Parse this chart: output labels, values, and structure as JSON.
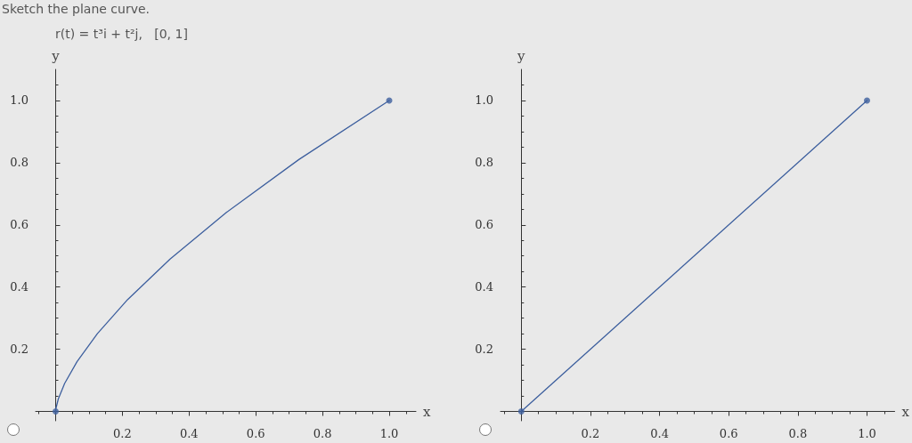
{
  "chart_data": [
    {
      "type": "line",
      "title": "Sketch the plane curve.",
      "subtitle": "r(t) = t³i + t²j,   [0, 1]",
      "xlabel": "x",
      "ylabel": "y",
      "series": [
        {
          "color": "#3d5f9e",
          "x": [
            0,
            0.001,
            0.008,
            0.027,
            0.064,
            0.125,
            0.216,
            0.343,
            0.512,
            0.729,
            1
          ],
          "values": [
            0,
            0.01,
            0.04,
            0.09,
            0.16,
            0.25,
            0.36,
            0.49,
            0.64,
            0.81,
            1
          ]
        },
        {
          "type": "scatter",
          "color": "#3d5f9e",
          "x": [
            0,
            1
          ],
          "values": [
            0,
            1
          ]
        }
      ],
      "marker": "none",
      "xlim": [
        -0.06,
        1.08
      ],
      "ylim": [
        -0.03,
        1.1
      ],
      "xticks": [
        0.2,
        0.4,
        0.6,
        0.8,
        {
          "value": 1,
          "label": "1.0"
        }
      ],
      "yticks": [
        0.2,
        0.4,
        0.6,
        0.8,
        {
          "value": 1,
          "label": "1.0"
        }
      ],
      "grid": false
    },
    {
      "type": "line",
      "xlabel": "x",
      "ylabel": "y",
      "series": [
        {
          "color": "#3d5f9e",
          "x": [
            0,
            1
          ],
          "values": [
            0,
            1
          ]
        },
        {
          "type": "scatter",
          "color": "#3d5f9e",
          "x": [
            0,
            1
          ],
          "values": [
            0,
            1
          ]
        }
      ],
      "marker": "none",
      "xlim": [
        -0.06,
        1.08
      ],
      "ylim": [
        -0.03,
        1.1
      ],
      "xticks": [
        0.2,
        0.4,
        0.6,
        0.8,
        {
          "value": 1,
          "label": "1.0"
        }
      ],
      "yticks": [
        0.2,
        0.4,
        0.6,
        0.8,
        {
          "value": 1,
          "label": "1.0"
        }
      ],
      "grid": false
    }
  ]
}
